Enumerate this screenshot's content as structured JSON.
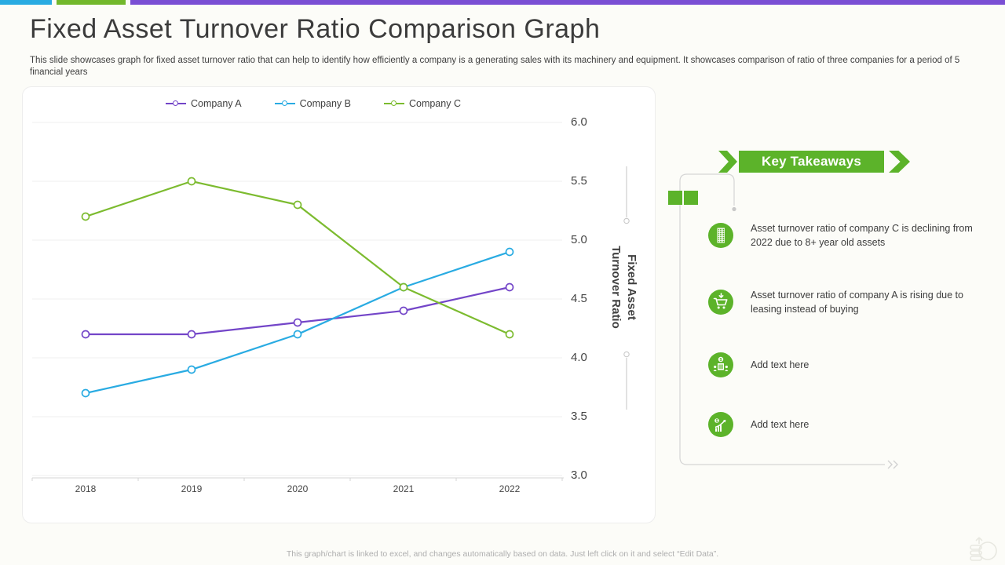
{
  "topbar": {
    "colors": [
      "#29ABE2",
      "#72B82C",
      "#7A4FD4"
    ]
  },
  "header": {
    "title": "Fixed Asset Turnover Ratio Comparison Graph",
    "subtitle": "This slide showcases graph for fixed asset turnover ratio that can help to identify how efficiently a company is a generating sales with its machinery and equipment. It showcases comparison of ratio of three companies for a period of 5 financial years"
  },
  "chart_data": {
    "type": "line",
    "categories": [
      "2018",
      "2019",
      "2020",
      "2021",
      "2022"
    ],
    "series": [
      {
        "name": "Company A",
        "color": "#7345C8",
        "values": [
          4.2,
          4.2,
          4.3,
          4.4,
          4.6
        ]
      },
      {
        "name": "Company B",
        "color": "#29ABE2",
        "values": [
          3.7,
          3.9,
          4.2,
          4.6,
          4.9
        ]
      },
      {
        "name": "Company C",
        "color": "#7CBB2F",
        "values": [
          5.2,
          5.5,
          5.3,
          4.6,
          4.2
        ]
      }
    ],
    "title": "",
    "xlabel": "",
    "ylabel": "Fixed Asset Turnover Ratio",
    "ylabel_lines": [
      "Fixed Asset",
      "Turnover Ratio"
    ],
    "ylim": [
      3.0,
      6.0
    ],
    "yticks": [
      6.0,
      5.5,
      5.0,
      4.5,
      4.0,
      3.5,
      3.0
    ],
    "grid": true,
    "legend_position": "top",
    "marker": "open-circle"
  },
  "takeaways": {
    "banner_label": "Key Takeaways",
    "accent_color": "#5CB32A",
    "items": [
      {
        "icon": "building-icon",
        "text": "Asset turnover ratio of company C is declining from 2022 due to 8+ year old assets",
        "placeholder": false
      },
      {
        "icon": "cart-icon",
        "text": "Asset turnover ratio of company A is rising due to leasing instead of buying",
        "placeholder": false
      },
      {
        "icon": "bank-people-icon",
        "text": "Add text here",
        "placeholder": true
      },
      {
        "icon": "growth-chart-icon",
        "text": "Add text here",
        "placeholder": true
      }
    ]
  },
  "footer": {
    "note": "This graph/chart is linked to excel, and changes automatically based on data. Just left click on it and select “Edit Data”."
  }
}
